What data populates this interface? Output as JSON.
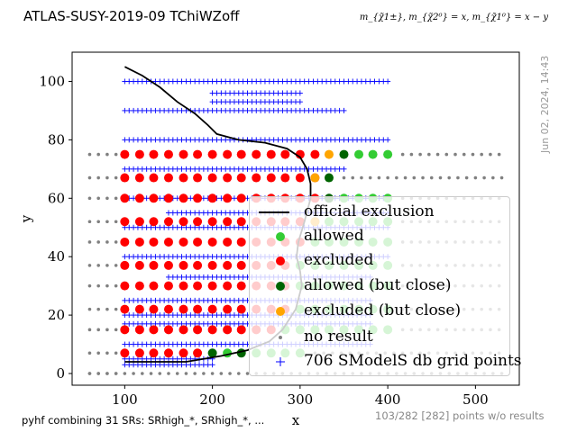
{
  "title": "ATLAS-SUSY-2019-09  TChiWZoff",
  "subtitle": "m_{χ̃1±}, m_{χ̃2⁰} = x, m_{χ̃1⁰} = x − y",
  "timestamp": "Jun 02, 2024, 14:43",
  "footer_left": "pyhf combining 31 SRs: SRhigh_*, SRhigh_*, ...",
  "footer_right": "103/282 [282] points w/o results",
  "colors": {
    "allowed": "#33cc33",
    "excluded": "#ff0000",
    "allowed_close": "#006400",
    "excluded_close": "#ffa500",
    "no_result": "#808080",
    "grid": "#0000ff",
    "exclusion": "#000000"
  },
  "legend": {
    "placement": "lower-right",
    "items": [
      {
        "key": "exclusion",
        "label": "official exclusion"
      },
      {
        "key": "allowed",
        "label": "allowed"
      },
      {
        "key": "excluded",
        "label": "excluded"
      },
      {
        "key": "allowed_close",
        "label": "allowed (but close)"
      },
      {
        "key": "excluded_close",
        "label": "excluded (but close)"
      },
      {
        "key": "no_result",
        "label": "no result"
      },
      {
        "key": "grid",
        "label": "706 SModelS db grid points"
      }
    ]
  },
  "chart_data": {
    "type": "scatter",
    "xlabel": "x",
    "ylabel": "y",
    "xlim": [
      40,
      550
    ],
    "ylim": [
      -4,
      110
    ],
    "xticks": [
      100,
      200,
      300,
      400,
      500
    ],
    "yticks": [
      0,
      20,
      40,
      60,
      80,
      100
    ],
    "grid": false,
    "points": {
      "excluded": [
        [
          100,
          7
        ],
        [
          117,
          7
        ],
        [
          133,
          7
        ],
        [
          150,
          7
        ],
        [
          167,
          7
        ],
        [
          183,
          7
        ],
        [
          100,
          15
        ],
        [
          117,
          15
        ],
        [
          133,
          15
        ],
        [
          150,
          15
        ],
        [
          167,
          15
        ],
        [
          183,
          15
        ],
        [
          200,
          15
        ],
        [
          217,
          15
        ],
        [
          233,
          15
        ],
        [
          250,
          15
        ],
        [
          267,
          15
        ],
        [
          100,
          22
        ],
        [
          117,
          22
        ],
        [
          133,
          22
        ],
        [
          150,
          22
        ],
        [
          167,
          22
        ],
        [
          183,
          22
        ],
        [
          200,
          22
        ],
        [
          217,
          22
        ],
        [
          233,
          22
        ],
        [
          250,
          22
        ],
        [
          267,
          22
        ],
        [
          283,
          22
        ],
        [
          100,
          30
        ],
        [
          117,
          30
        ],
        [
          133,
          30
        ],
        [
          150,
          30
        ],
        [
          167,
          30
        ],
        [
          183,
          30
        ],
        [
          200,
          30
        ],
        [
          217,
          30
        ],
        [
          233,
          30
        ],
        [
          250,
          30
        ],
        [
          267,
          30
        ],
        [
          283,
          30
        ],
        [
          100,
          37
        ],
        [
          117,
          37
        ],
        [
          133,
          37
        ],
        [
          150,
          37
        ],
        [
          167,
          37
        ],
        [
          183,
          37
        ],
        [
          200,
          37
        ],
        [
          217,
          37
        ],
        [
          233,
          37
        ],
        [
          250,
          37
        ],
        [
          267,
          37
        ],
        [
          283,
          37
        ],
        [
          100,
          45
        ],
        [
          117,
          45
        ],
        [
          133,
          45
        ],
        [
          150,
          45
        ],
        [
          167,
          45
        ],
        [
          183,
          45
        ],
        [
          200,
          45
        ],
        [
          217,
          45
        ],
        [
          233,
          45
        ],
        [
          250,
          45
        ],
        [
          267,
          45
        ],
        [
          283,
          45
        ],
        [
          300,
          45
        ],
        [
          100,
          52
        ],
        [
          117,
          52
        ],
        [
          133,
          52
        ],
        [
          150,
          52
        ],
        [
          167,
          52
        ],
        [
          183,
          52
        ],
        [
          200,
          52
        ],
        [
          217,
          52
        ],
        [
          233,
          52
        ],
        [
          250,
          52
        ],
        [
          267,
          52
        ],
        [
          283,
          52
        ],
        [
          300,
          52
        ],
        [
          100,
          60
        ],
        [
          117,
          60
        ],
        [
          133,
          60
        ],
        [
          150,
          60
        ],
        [
          167,
          60
        ],
        [
          183,
          60
        ],
        [
          200,
          60
        ],
        [
          217,
          60
        ],
        [
          233,
          60
        ],
        [
          250,
          60
        ],
        [
          267,
          60
        ],
        [
          283,
          60
        ],
        [
          300,
          60
        ],
        [
          317,
          60
        ],
        [
          100,
          67
        ],
        [
          117,
          67
        ],
        [
          133,
          67
        ],
        [
          150,
          67
        ],
        [
          167,
          67
        ],
        [
          183,
          67
        ],
        [
          200,
          67
        ],
        [
          217,
          67
        ],
        [
          233,
          67
        ],
        [
          250,
          67
        ],
        [
          267,
          67
        ],
        [
          283,
          67
        ],
        [
          300,
          67
        ],
        [
          317,
          67
        ],
        [
          100,
          75
        ],
        [
          117,
          75
        ],
        [
          133,
          75
        ],
        [
          150,
          75
        ],
        [
          167,
          75
        ],
        [
          183,
          75
        ],
        [
          200,
          75
        ],
        [
          217,
          75
        ],
        [
          233,
          75
        ],
        [
          250,
          75
        ],
        [
          267,
          75
        ],
        [
          283,
          75
        ],
        [
          300,
          75
        ],
        [
          317,
          75
        ]
      ],
      "allowed": [
        [
          217,
          7
        ],
        [
          250,
          7
        ],
        [
          267,
          7
        ],
        [
          283,
          7
        ],
        [
          300,
          7
        ],
        [
          283,
          15
        ],
        [
          300,
          15
        ],
        [
          317,
          15
        ],
        [
          333,
          15
        ],
        [
          350,
          15
        ],
        [
          367,
          15
        ],
        [
          383,
          15
        ],
        [
          400,
          15
        ],
        [
          300,
          22
        ],
        [
          317,
          22
        ],
        [
          333,
          22
        ],
        [
          350,
          22
        ],
        [
          367,
          22
        ],
        [
          383,
          22
        ],
        [
          400,
          22
        ],
        [
          300,
          30
        ],
        [
          317,
          30
        ],
        [
          333,
          30
        ],
        [
          350,
          30
        ],
        [
          367,
          30
        ],
        [
          383,
          30
        ],
        [
          400,
          30
        ],
        [
          300,
          37
        ],
        [
          317,
          37
        ],
        [
          333,
          37
        ],
        [
          350,
          37
        ],
        [
          367,
          37
        ],
        [
          383,
          37
        ],
        [
          400,
          37
        ],
        [
          317,
          45
        ],
        [
          333,
          45
        ],
        [
          350,
          45
        ],
        [
          367,
          45
        ],
        [
          383,
          45
        ],
        [
          400,
          45
        ],
        [
          317,
          52
        ],
        [
          333,
          52
        ],
        [
          350,
          52
        ],
        [
          367,
          52
        ],
        [
          383,
          52
        ],
        [
          400,
          52
        ],
        [
          350,
          60
        ],
        [
          367,
          60
        ],
        [
          383,
          60
        ],
        [
          400,
          60
        ],
        [
          367,
          75
        ],
        [
          383,
          75
        ],
        [
          400,
          75
        ]
      ],
      "allowed_close": [
        [
          200,
          7
        ],
        [
          233,
          7
        ],
        [
          333,
          60
        ],
        [
          333,
          67
        ],
        [
          350,
          75
        ]
      ],
      "excluded_close": [
        [
          333,
          75
        ],
        [
          317,
          67
        ],
        [
          317,
          52
        ]
      ],
      "no_result_rows": [
        {
          "y": 0,
          "from": 60,
          "to": 530
        },
        {
          "y": 7,
          "from": 317,
          "to": 530
        },
        {
          "y": 15,
          "from": 417,
          "to": 530
        },
        {
          "y": 22,
          "from": 417,
          "to": 530
        },
        {
          "y": 30,
          "from": 417,
          "to": 530
        },
        {
          "y": 37,
          "from": 417,
          "to": 530
        },
        {
          "y": 45,
          "from": 417,
          "to": 530
        },
        {
          "y": 52,
          "from": 417,
          "to": 530
        },
        {
          "y": 60,
          "from": 417,
          "to": 530
        },
        {
          "y": 67,
          "from": 350,
          "to": 530
        },
        {
          "y": 75,
          "from": 417,
          "to": 530
        }
      ],
      "no_result_left_x": [
        60,
        70,
        80,
        90
      ],
      "grid_rows": [
        {
          "y": 3,
          "from": 100,
          "to": 200
        },
        {
          "y": 5,
          "from": 100,
          "to": 200
        },
        {
          "y": 10,
          "from": 100,
          "to": 380
        },
        {
          "y": 17,
          "from": 100,
          "to": 380
        },
        {
          "y": 20,
          "from": 100,
          "to": 380
        },
        {
          "y": 25,
          "from": 100,
          "to": 380
        },
        {
          "y": 33,
          "from": 150,
          "to": 380
        },
        {
          "y": 40,
          "from": 100,
          "to": 400
        },
        {
          "y": 50,
          "from": 100,
          "to": 400
        },
        {
          "y": 55,
          "from": 150,
          "to": 400
        },
        {
          "y": 60,
          "from": 100,
          "to": 400
        },
        {
          "y": 70,
          "from": 100,
          "to": 350
        },
        {
          "y": 80,
          "from": 100,
          "to": 400
        },
        {
          "y": 90,
          "from": 100,
          "to": 350
        },
        {
          "y": 93,
          "from": 200,
          "to": 300
        },
        {
          "y": 96,
          "from": 200,
          "to": 300
        },
        {
          "y": 100,
          "from": 100,
          "to": 400
        }
      ],
      "exclusion_curve": [
        [
          100,
          105
        ],
        [
          120,
          102
        ],
        [
          140,
          98
        ],
        [
          160,
          93
        ],
        [
          180,
          89
        ],
        [
          195,
          85
        ],
        [
          205,
          82
        ],
        [
          230,
          80
        ],
        [
          260,
          79
        ],
        [
          285,
          77
        ],
        [
          300,
          74
        ],
        [
          308,
          70
        ],
        [
          312,
          65
        ],
        [
          312,
          60
        ],
        [
          305,
          52
        ],
        [
          298,
          45
        ],
        [
          296,
          40
        ],
        [
          300,
          35
        ],
        [
          302,
          30
        ],
        [
          295,
          22
        ],
        [
          280,
          15
        ],
        [
          265,
          11
        ],
        [
          240,
          8
        ],
        [
          210,
          6
        ],
        [
          170,
          4
        ],
        [
          130,
          4
        ],
        [
          100,
          4
        ]
      ]
    }
  }
}
